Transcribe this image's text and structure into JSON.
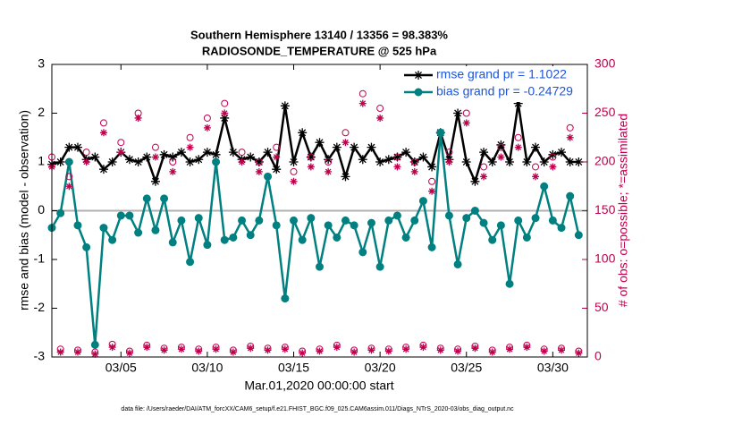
{
  "chart_data": {
    "type": "line",
    "title": "Southern Hemisphere 13140 / 13356 = 98.383%",
    "subtitle": "RADIOSONDE_TEMPERATURE @ 525 hPa",
    "xlabel": "Mar.01,2020 00:00:00 start",
    "ylabel": "rmse and bias (model - observation)",
    "y2label": "# of obs: o=possible; *=assimilated",
    "footnote": "data file: /Users/raeder/DAI/ATM_forcXX/CAM6_setup/f.e21.FHIST_BGC.f09_025.CAM6assim.011/Diags_NTrS_2020-03/obs_diag_output.nc",
    "x": [
      1,
      1.5,
      2,
      2.5,
      3,
      3.5,
      4,
      4.5,
      5,
      5.5,
      6,
      6.5,
      7,
      7.5,
      8,
      8.5,
      9,
      9.5,
      10,
      10.5,
      11,
      11.5,
      12,
      12.5,
      13,
      13.5,
      14,
      14.5,
      15,
      15.5,
      16,
      16.5,
      17,
      17.5,
      18,
      18.5,
      19,
      19.5,
      20,
      20.5,
      21,
      21.5,
      22,
      22.5,
      23,
      23.5,
      24,
      24.5,
      25,
      25.5,
      26,
      26.5,
      27,
      27.5,
      28,
      28.5,
      29,
      29.5,
      30,
      30.5,
      31,
      31.5
    ],
    "xlim": [
      1,
      32
    ],
    "xticks": [
      {
        "value": 5,
        "label": "03/05"
      },
      {
        "value": 10,
        "label": "03/10"
      },
      {
        "value": 15,
        "label": "03/15"
      },
      {
        "value": 20,
        "label": "03/20"
      },
      {
        "value": 25,
        "label": "03/25"
      },
      {
        "value": 30,
        "label": "03/30"
      }
    ],
    "ylim": [
      -3,
      3
    ],
    "yticks": [
      -3,
      -2,
      -1,
      0,
      1,
      2,
      3
    ],
    "y2lim": [
      0,
      300
    ],
    "y2ticks": [
      0,
      50,
      100,
      150,
      200,
      250,
      300
    ],
    "y2color": "#c0004e",
    "grid": false,
    "legend": "upper right",
    "series": [
      {
        "name": "rmse grand pr = 1.1022",
        "color": "#000000",
        "marker": "star",
        "line": true,
        "values": [
          0.95,
          1.0,
          1.3,
          1.3,
          1.05,
          1.1,
          0.85,
          1.0,
          1.2,
          1.05,
          1.0,
          1.1,
          0.6,
          1.15,
          1.1,
          1.2,
          1.0,
          1.05,
          1.2,
          1.15,
          1.9,
          1.2,
          1.05,
          1.1,
          1.0,
          1.2,
          0.85,
          2.15,
          1.0,
          1.6,
          1.1,
          1.4,
          1.05,
          1.3,
          0.7,
          1.3,
          1.05,
          1.3,
          1.0,
          1.05,
          1.1,
          1.2,
          1.0,
          1.1,
          0.9,
          1.6,
          1.05,
          2.0,
          1.0,
          0.6,
          1.2,
          1.0,
          1.35,
          1.0,
          2.2,
          1.0,
          1.3,
          1.0,
          1.15,
          1.2,
          1.0,
          1.0
        ]
      },
      {
        "name": "bias grand pr = -0.24729",
        "color": "#008080",
        "marker": "circle",
        "line": true,
        "values": [
          -0.35,
          -0.05,
          1.0,
          -0.3,
          -0.75,
          -2.75,
          -0.35,
          -0.6,
          -0.1,
          -0.1,
          -0.45,
          0.25,
          -0.4,
          0.25,
          -0.65,
          -0.2,
          -1.05,
          -0.15,
          -0.7,
          1.0,
          -0.6,
          -0.55,
          -0.2,
          -0.5,
          -0.2,
          0.7,
          -0.3,
          -1.8,
          -0.2,
          -0.6,
          -0.15,
          -1.15,
          -0.3,
          -0.55,
          -0.2,
          -0.3,
          -0.85,
          -0.25,
          -1.15,
          -0.2,
          -0.1,
          -0.55,
          -0.2,
          0.2,
          -0.75,
          1.6,
          -0.1,
          -1.1,
          -0.15,
          0.0,
          -0.25,
          -0.6,
          -0.3,
          -1.5,
          -0.2,
          -0.55,
          -0.15,
          0.5,
          -0.2,
          -0.35,
          0.3,
          -0.5
        ]
      },
      {
        "color": "#c0004e",
        "marker": "open-circle",
        "line": false,
        "axis": "y2",
        "values": [
          205,
          8,
          185,
          7,
          210,
          5,
          240,
          13,
          220,
          6,
          250,
          12,
          215,
          9,
          200,
          10,
          225,
          8,
          245,
          10,
          260,
          7,
          210,
          11,
          200,
          9,
          215,
          10,
          190,
          6,
          205,
          8,
          200,
          12,
          230,
          7,
          270,
          9,
          255,
          8,
          205,
          10,
          200,
          12,
          180,
          9,
          210,
          8,
          250,
          11,
          195,
          7,
          215,
          10,
          225,
          12,
          195,
          8,
          205,
          9,
          235,
          6
        ]
      },
      {
        "color": "#c0004e",
        "marker": "star",
        "line": false,
        "axis": "y2",
        "values": [
          195,
          5,
          175,
          5,
          200,
          3,
          230,
          10,
          210,
          4,
          245,
          10,
          205,
          7,
          190,
          8,
          215,
          6,
          235,
          8,
          250,
          5,
          200,
          9,
          190,
          7,
          205,
          8,
          180,
          4,
          195,
          6,
          190,
          10,
          220,
          5,
          260,
          7,
          245,
          6,
          195,
          8,
          190,
          10,
          170,
          7,
          200,
          6,
          240,
          9,
          185,
          5,
          205,
          8,
          215,
          10,
          185,
          6,
          195,
          7,
          225,
          4
        ]
      }
    ]
  }
}
